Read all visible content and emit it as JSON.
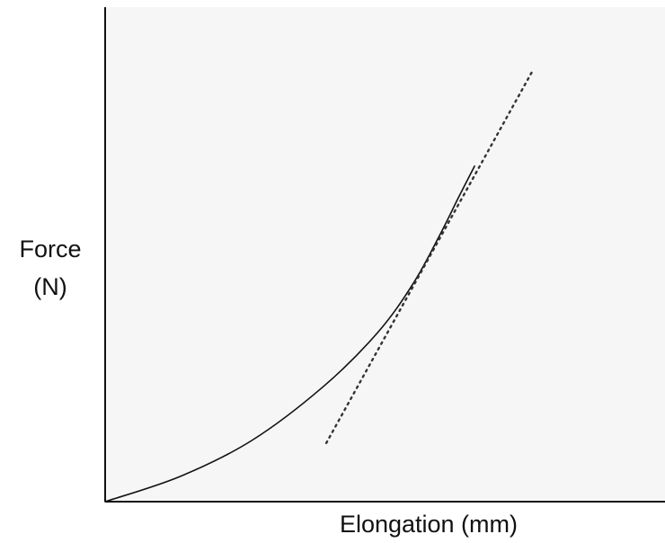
{
  "chart_data": {
    "type": "line",
    "xlabel": "Elongation (mm)",
    "ylabel": [
      "Force",
      "(N)"
    ],
    "xlim": [
      0,
      100
    ],
    "ylim": [
      0,
      100
    ],
    "series": [
      {
        "color": "#111111",
        "dash": "solid",
        "x": [
          0,
          13.4,
          26.3,
          39.2,
          48.9,
          55.3,
          60.2,
          63.4,
          66.3
        ],
        "values": [
          0,
          5.1,
          12.4,
          23.4,
          34.3,
          44.3,
          54.4,
          61.7,
          68.1
        ]
      },
      {
        "color": "#333333",
        "dash": "dotted",
        "x": [
          39.7,
          76.6
        ],
        "values": [
          11.9,
          87.2
        ]
      }
    ]
  }
}
